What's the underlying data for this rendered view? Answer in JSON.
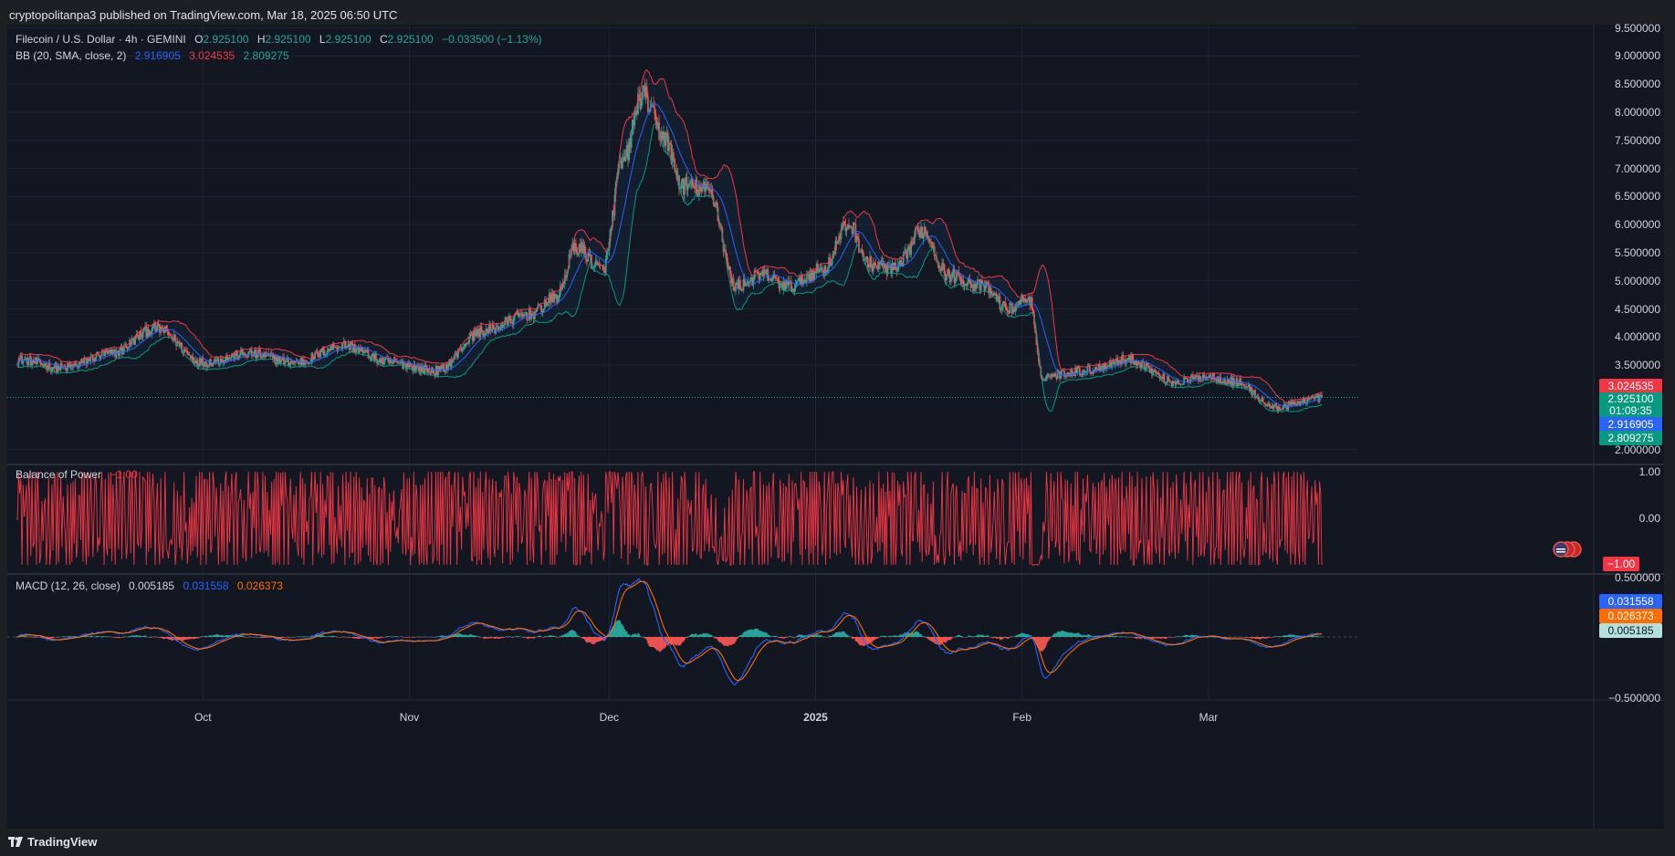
{
  "header": {
    "published": "cryptopolitanpa3 published on TradingView.com, Mar 18, 2025 06:50 UTC"
  },
  "footer": {
    "brand": "TradingView"
  },
  "legend": {
    "symbol": "Filecoin / U.S. Dollar · 4h · GEMINI",
    "o_label": "O",
    "o": "2.925100",
    "h_label": "H",
    "h": "2.925100",
    "l_label": "L",
    "l": "2.925100",
    "c_label": "C",
    "c": "2.925100",
    "change": "−0.033500 (−1.13%)",
    "bb_label": "BB (20, SMA, close, 2)",
    "bb_basis": "2.916905",
    "bb_upper": "3.024535",
    "bb_lower": "2.809275",
    "bop_label": "Balance of Power",
    "bop_value": "−1.00",
    "macd_label": "MACD (12, 26, close)",
    "macd_hist": "0.005185",
    "macd_line": "0.031558",
    "macd_signal": "0.026373"
  },
  "colors": {
    "up": "#26a69a",
    "down": "#ef5350",
    "basis": "#2962ff",
    "upper": "#f23645",
    "lower": "#089981",
    "macd": "#2962ff",
    "signal": "#ff6d00",
    "bop": "#f23645"
  },
  "price_tags": {
    "upper": "3.024535",
    "last": "2.925100",
    "countdown": "01:09:35",
    "basis": "2.916905",
    "lower": "2.809275",
    "bop": "−1.00",
    "macd": "0.031558",
    "signal": "0.026373",
    "hist": "0.005185"
  },
  "chart_data": [
    {
      "type": "candlestick",
      "title": "Filecoin / U.S. Dollar · 4h · GEMINI",
      "ylim": [
        2.0,
        9.5
      ],
      "y_ticks": [
        "9.500000",
        "9.000000",
        "8.500000",
        "8.000000",
        "7.500000",
        "7.000000",
        "6.500000",
        "6.000000",
        "5.500000",
        "5.000000",
        "4.500000",
        "4.000000",
        "3.500000",
        "2.000000"
      ],
      "x_ticks": [
        "Oct",
        "Nov",
        "Dec",
        "2025",
        "Feb",
        "Mar"
      ],
      "x_tick_dates": [
        "2024-10-01",
        "2024-11-01",
        "2024-12-01",
        "2025-01-01",
        "2025-02-01",
        "2025-03-01"
      ],
      "x_range": [
        "2024-09-03",
        "2025-03-18"
      ],
      "anchors": [
        [
          "2024-09-03",
          3.6
        ],
        [
          "2024-09-10",
          3.45
        ],
        [
          "2024-09-17",
          3.7
        ],
        [
          "2024-09-24",
          4.15
        ],
        [
          "2024-10-01",
          3.55
        ],
        [
          "2024-10-08",
          3.7
        ],
        [
          "2024-10-15",
          3.55
        ],
        [
          "2024-10-22",
          3.85
        ],
        [
          "2024-10-29",
          3.55
        ],
        [
          "2024-11-05",
          3.4
        ],
        [
          "2024-11-12",
          4.1
        ],
        [
          "2024-11-19",
          4.4
        ],
        [
          "2024-11-23",
          4.7
        ],
        [
          "2024-11-26",
          5.6
        ],
        [
          "2024-11-30",
          5.2
        ],
        [
          "2024-12-03",
          7.1
        ],
        [
          "2024-12-06",
          8.3
        ],
        [
          "2024-12-09",
          7.6
        ],
        [
          "2024-12-12",
          6.7
        ],
        [
          "2024-12-16",
          6.6
        ],
        [
          "2024-12-20",
          4.9
        ],
        [
          "2024-12-24",
          5.1
        ],
        [
          "2024-12-28",
          4.9
        ],
        [
          "2025-01-02",
          5.2
        ],
        [
          "2025-01-06",
          6.0
        ],
        [
          "2025-01-09",
          5.3
        ],
        [
          "2025-01-13",
          5.2
        ],
        [
          "2025-01-17",
          5.9
        ],
        [
          "2025-01-21",
          5.1
        ],
        [
          "2025-01-26",
          4.9
        ],
        [
          "2025-01-30",
          4.5
        ],
        [
          "2025-02-02",
          4.7
        ],
        [
          "2025-02-04",
          3.3
        ],
        [
          "2025-02-10",
          3.4
        ],
        [
          "2025-02-17",
          3.6
        ],
        [
          "2025-02-24",
          3.2
        ],
        [
          "2025-03-01",
          3.3
        ],
        [
          "2025-03-05",
          3.2
        ],
        [
          "2025-03-11",
          2.75
        ],
        [
          "2025-03-18",
          2.925
        ]
      ],
      "bollinger": {
        "period": 20,
        "std": 2,
        "basis": 2.916905,
        "upper": 3.024535,
        "lower": 2.809275
      },
      "last": 2.9251
    },
    {
      "type": "line",
      "title": "Balance of Power",
      "ylim": [
        -1.0,
        1.0
      ],
      "y_ticks": [
        "1.00",
        "0.00"
      ],
      "last": -1.0
    },
    {
      "type": "bar",
      "title": "MACD (12, 26, close)",
      "ylim": [
        -0.5,
        0.5
      ],
      "y_ticks": [
        "0.500000",
        "−0.500000"
      ],
      "macd": 0.031558,
      "signal": 0.026373,
      "histogram": 0.005185
    }
  ]
}
